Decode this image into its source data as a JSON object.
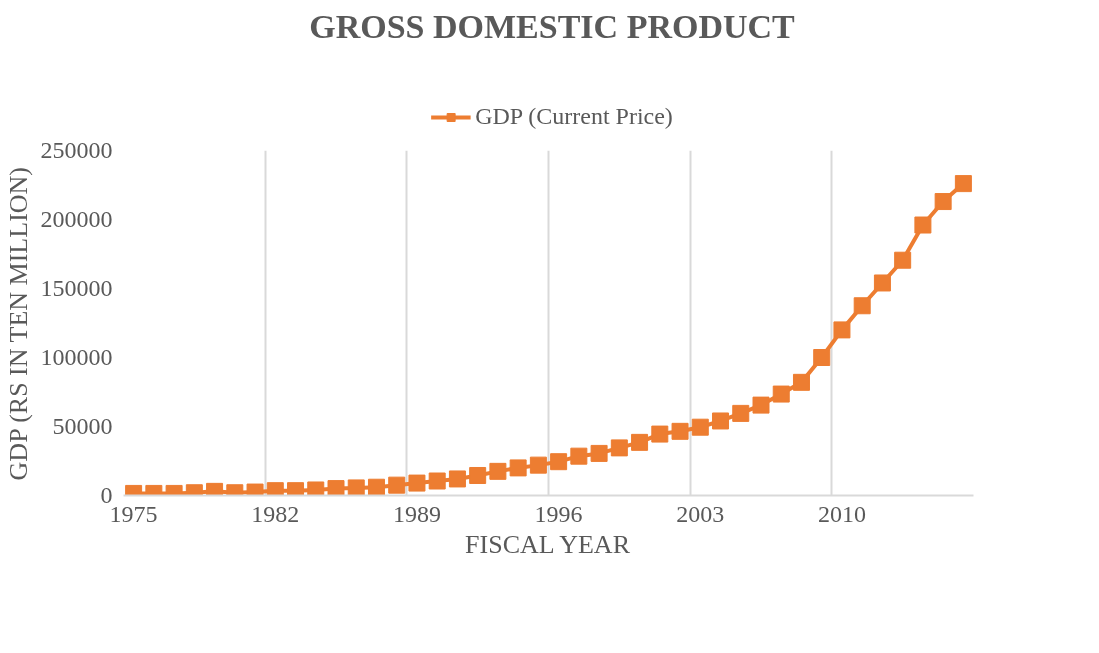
{
  "chart_data": {
    "type": "line",
    "title": "GROSS DOMESTIC PRODUCT",
    "xlabel": "FISCAL YEAR",
    "ylabel": "GDP (RS IN TEN MILLION)",
    "categories": [
      "1975",
      null,
      null,
      null,
      null,
      null,
      null,
      "1982",
      null,
      null,
      null,
      null,
      null,
      null,
      "1989",
      null,
      null,
      null,
      null,
      null,
      null,
      "1996",
      null,
      null,
      null,
      null,
      null,
      null,
      "2003",
      null,
      null,
      null,
      null,
      null,
      null,
      "2010",
      null,
      null,
      null,
      null,
      null,
      null
    ],
    "series": [
      {
        "name": "GDP (Current Price)",
        "color": "#ed7d31",
        "values": [
          1500,
          1500,
          1500,
          2000,
          3000,
          2000,
          2500,
          3500,
          3500,
          4000,
          5000,
          5500,
          6000,
          7500,
          9000,
          10500,
          12000,
          14500,
          17500,
          20000,
          22000,
          24500,
          28500,
          30500,
          34500,
          38500,
          44500,
          46500,
          49500,
          54000,
          59500,
          65500,
          73500,
          82000,
          100000,
          120000,
          137500,
          154000,
          170500,
          196000,
          213000,
          226000
        ]
      }
    ],
    "ylim": [
      0,
      250000
    ],
    "yticks": [
      0,
      50000,
      100000,
      150000,
      200000,
      250000
    ],
    "grid": "x",
    "legend": "top",
    "marker": "square",
    "line_style": "solid"
  }
}
